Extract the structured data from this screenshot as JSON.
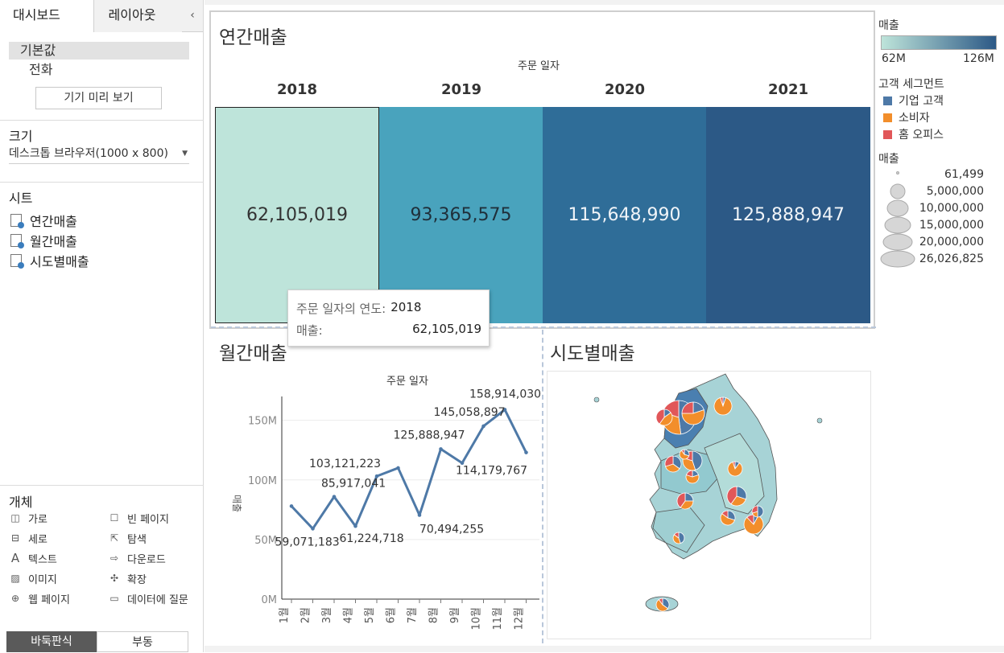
{
  "left_panel": {
    "tabs": [
      "대시보드",
      "레이아웃"
    ],
    "collapse_glyph": "‹",
    "device": {
      "default_label": "기본값",
      "phone_label": "전화",
      "preview_button": "기기 미리 보기"
    },
    "size": {
      "title": "크기",
      "value": "데스크톱 브라우저(1000 x 800)"
    },
    "sheets": {
      "title": "시트",
      "items": [
        "연간매출",
        "월간매출",
        "시도별매출"
      ]
    },
    "objects": {
      "title": "개체",
      "items": [
        {
          "label": "가로",
          "icon": "horizontal-icon"
        },
        {
          "label": "빈 페이지",
          "icon": "blank-icon"
        },
        {
          "label": "세로",
          "icon": "vertical-icon"
        },
        {
          "label": "탐색",
          "icon": "navigation-icon"
        },
        {
          "label": "텍스트",
          "icon": "text-icon"
        },
        {
          "label": "다운로드",
          "icon": "download-icon"
        },
        {
          "label": "이미지",
          "icon": "image-icon"
        },
        {
          "label": "확장",
          "icon": "extension-icon"
        },
        {
          "label": "웹 페이지",
          "icon": "web-icon"
        },
        {
          "label": "데이터에 질문",
          "icon": "ask-data-icon"
        }
      ]
    },
    "bottom_tabs": [
      "바둑판식",
      "부동"
    ]
  },
  "annual": {
    "title": "연간매출",
    "axis_title": "주문 일자",
    "years": [
      "2018",
      "2019",
      "2020",
      "2021"
    ],
    "values": [
      "62,105,019",
      "93,365,575",
      "115,648,990",
      "125,888,947"
    ],
    "colors": [
      "#bee4da",
      "#49a3bd",
      "#2f6d98",
      "#2c5986"
    ],
    "text_colors": [
      "#333333",
      "#1f2f3a",
      "#f0f4f8",
      "#f0f4f8"
    ]
  },
  "tooltip": {
    "row1_key": "주문 일자의 연도:",
    "row1_val": "2018",
    "row2_key": "매출:",
    "row2_val": "62,105,019"
  },
  "monthly": {
    "title": "월간매출",
    "axis_title": "주문 일자",
    "y_axis_label": "매출"
  },
  "chart_data": {
    "type": "line",
    "x": [
      "1월",
      "2월",
      "3월",
      "4월",
      "5월",
      "6월",
      "7월",
      "8월",
      "9월",
      "10월",
      "11월",
      "12월"
    ],
    "series": [
      {
        "values": [
          78000000,
          59071183,
          85917041,
          61224718,
          103121223,
          110000000,
          70494255,
          125888947,
          114179767,
          145058897,
          158914030,
          123000000
        ]
      }
    ],
    "data_labels": [
      null,
      "59,071,183",
      "85,917,041",
      "61,224,718",
      "103,121,223",
      null,
      "70,494,255",
      "125,888,947",
      "114,179,767",
      "145,058,897",
      "158,914,030",
      null
    ],
    "y_ticks": [
      "0M",
      "50M",
      "100M",
      "150M"
    ],
    "ylim": [
      0,
      170000000
    ],
    "color": "#4e79a7"
  },
  "map": {
    "title": "시도별매출"
  },
  "legends": {
    "color_title": "매출",
    "color_min": "62M",
    "color_max": "126M",
    "segment_title": "고객 세그먼트",
    "segments": [
      {
        "label": "기업 고객",
        "color": "#4e79a7"
      },
      {
        "label": "소비자",
        "color": "#f28e2b"
      },
      {
        "label": "홈 오피스",
        "color": "#e15759"
      }
    ],
    "size_title": "매출",
    "size_values": [
      "61,499",
      "5,000,000",
      "10,000,000",
      "15,000,000",
      "20,000,000",
      "26,026,825"
    ]
  }
}
